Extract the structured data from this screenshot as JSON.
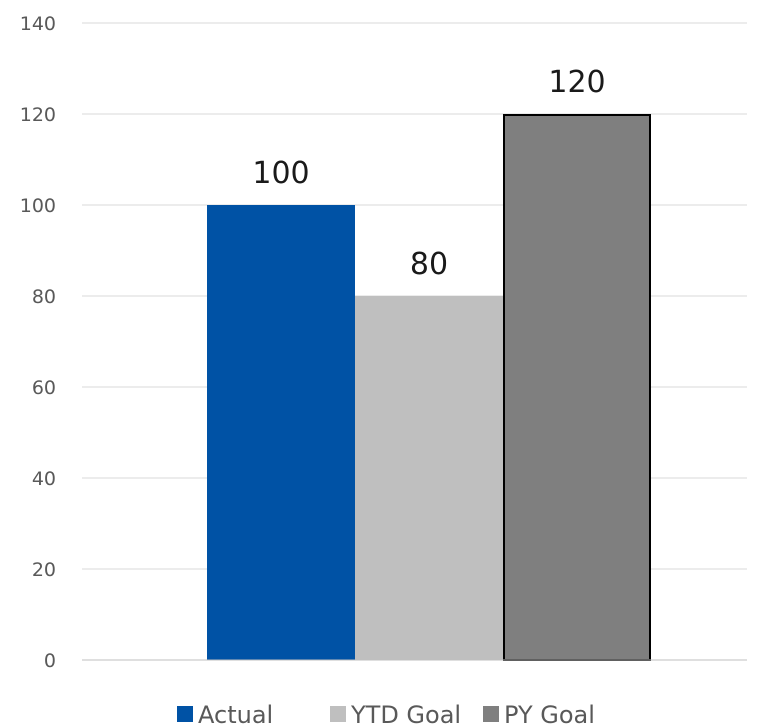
{
  "chart_data": {
    "type": "bar",
    "title": "",
    "xlabel": "",
    "ylabel": "",
    "ylim": [
      0,
      140
    ],
    "yticks": [
      0,
      20,
      40,
      60,
      80,
      100,
      120,
      140
    ],
    "grid": true,
    "legend_position": "bottom",
    "data_labels": true,
    "series": [
      {
        "name": "Actual",
        "values": [
          100
        ],
        "color": "#0052a5",
        "outlined": false
      },
      {
        "name": "YTD Goal",
        "values": [
          80
        ],
        "color": "#bfbfbf",
        "outlined": false
      },
      {
        "name": "PY Goal",
        "values": [
          120
        ],
        "color": "#7f7f7f",
        "outlined": true
      }
    ]
  }
}
